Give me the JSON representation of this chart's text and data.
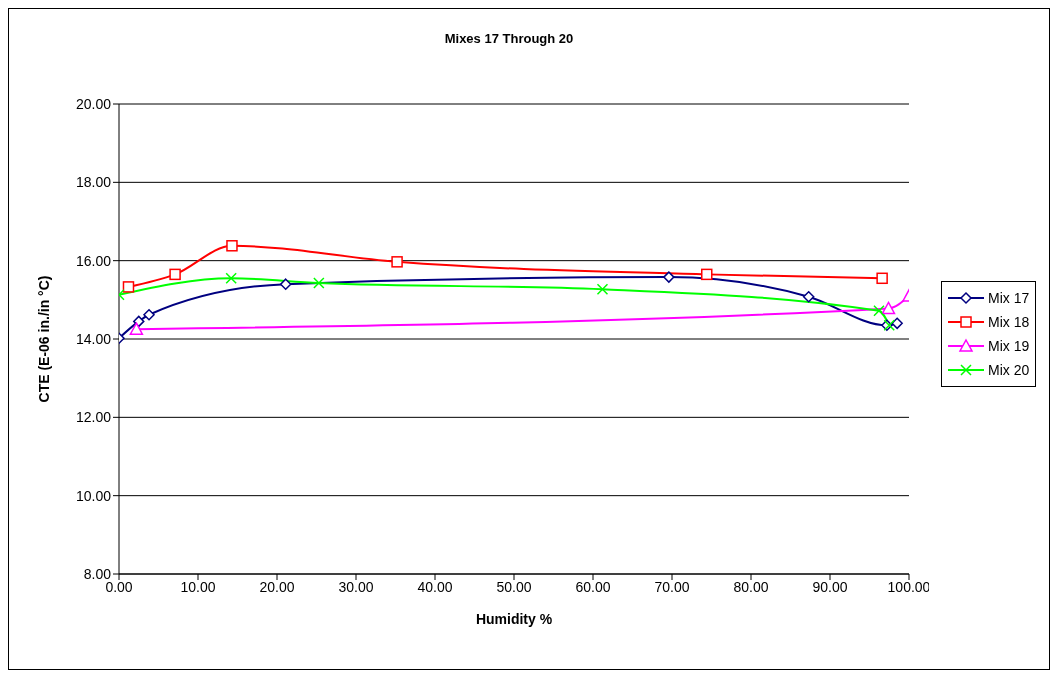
{
  "chart_data": {
    "type": "line",
    "title": "Mixes 17 Through 20",
    "xlabel": "Humidity %",
    "ylabel": "CTE (E-06 in./in °C)",
    "xlim": [
      0,
      100
    ],
    "xticks": [
      {
        "value": 0,
        "label": "0.00"
      },
      {
        "value": 10,
        "label": "10.00"
      },
      {
        "value": 20,
        "label": "20.00"
      },
      {
        "value": 30,
        "label": "30.00"
      },
      {
        "value": 40,
        "label": "40.00"
      },
      {
        "value": 50,
        "label": "50.00"
      },
      {
        "value": 60,
        "label": "60.00"
      },
      {
        "value": 70,
        "label": "70.00"
      },
      {
        "value": 80,
        "label": "80.00"
      },
      {
        "value": 90,
        "label": "90.00"
      },
      {
        "value": 100,
        "label": "100.00"
      }
    ],
    "ylim": [
      8,
      20
    ],
    "yticks": [
      {
        "value": 8,
        "label": "8.00"
      },
      {
        "value": 10,
        "label": "10.00"
      },
      {
        "value": 12,
        "label": "12.00"
      },
      {
        "value": 14,
        "label": "14.00"
      },
      {
        "value": 16,
        "label": "16.00"
      },
      {
        "value": 18,
        "label": "18.00"
      },
      {
        "value": 20,
        "label": "20.00"
      }
    ],
    "grid": "y",
    "legend": "right",
    "line_style": "solid",
    "series": [
      {
        "name": "Mix 17",
        "color": "#000080",
        "marker": "diamond",
        "x": [
          0,
          2.5,
          3.8,
          21.1,
          69.6,
          87.3,
          97.2,
          98.5
        ],
        "values": [
          14.02,
          14.45,
          14.62,
          15.4,
          15.58,
          15.08,
          14.35,
          14.4
        ]
      },
      {
        "name": "Mix 18",
        "color": "#ff0000",
        "marker": "square",
        "x": [
          1.2,
          7.1,
          14.3,
          35.2,
          74.4,
          96.6
        ],
        "values": [
          15.33,
          15.65,
          16.38,
          15.97,
          15.65,
          15.55
        ]
      },
      {
        "name": "Mix 19",
        "color": "#ff00ff",
        "marker": "triangle",
        "x": [
          2.2,
          97.4,
          100
        ],
        "values": [
          14.25,
          14.78,
          15.1
        ]
      },
      {
        "name": "Mix 20",
        "color": "#00ff00",
        "marker": "cross",
        "x": [
          0,
          14.2,
          25.3,
          61.2,
          96.2,
          97.5
        ],
        "values": [
          15.13,
          15.55,
          15.43,
          15.27,
          14.72,
          14.35
        ]
      }
    ]
  }
}
